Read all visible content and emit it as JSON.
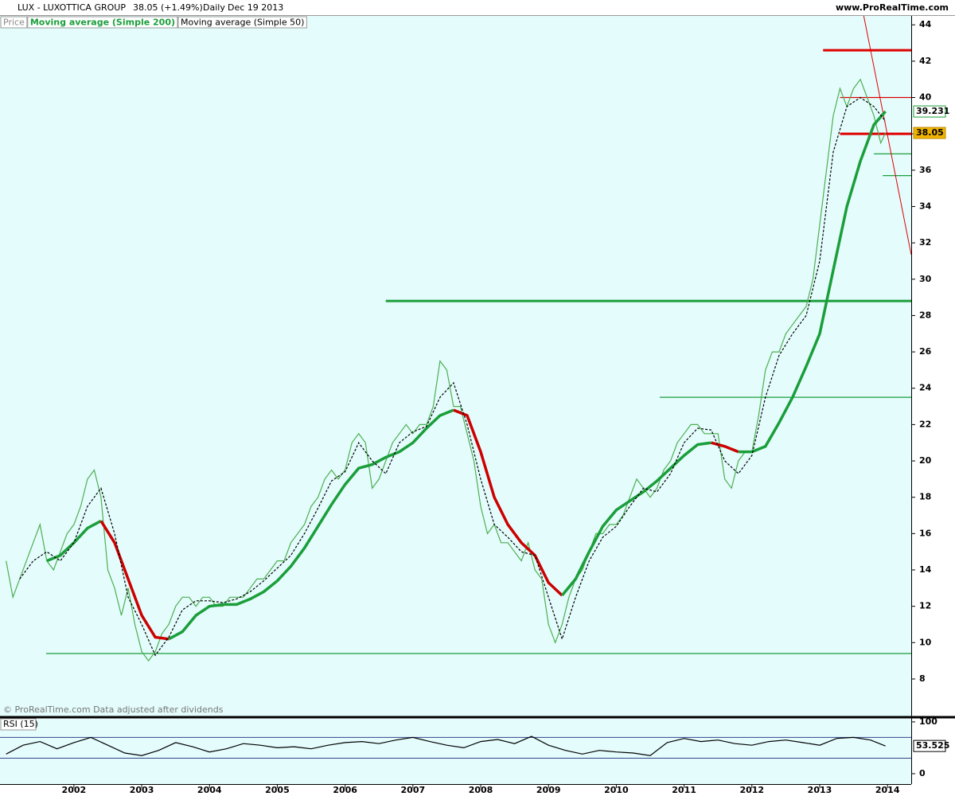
{
  "header": {
    "ticker": "LUX - LUXOTTICA GROUP",
    "quote": "38.05 (+1.49%)",
    "interval": "Daily",
    "date": "Dec 19 2013",
    "source": "www.ProRealTime.com",
    "footnote": "© ProRealTime.com Data adjusted after dividends"
  },
  "chart_data": [
    {
      "type": "line",
      "xlim": [
        2000.91,
        2014.35
      ],
      "ylim": [
        5.94,
        44.49
      ],
      "xticks": [
        2002,
        2003,
        2004,
        2005,
        2006,
        2007,
        2008,
        2009,
        2010,
        2011,
        2012,
        2013,
        2014
      ],
      "yticks": [
        8,
        10,
        12,
        14,
        16,
        18,
        20,
        22,
        24,
        26,
        28,
        30,
        32,
        34,
        36,
        38,
        40,
        42,
        44
      ],
      "series": [
        {
          "name": "Price",
          "color": "#4caf50",
          "style": "solid",
          "label_color": "#888888",
          "x": [
            2001.0,
            2001.1,
            2001.2,
            2001.3,
            2001.4,
            2001.5,
            2001.6,
            2001.7,
            2001.8,
            2001.9,
            2002.0,
            2002.1,
            2002.2,
            2002.3,
            2002.4,
            2002.5,
            2002.6,
            2002.7,
            2002.8,
            2002.9,
            2003.0,
            2003.1,
            2003.2,
            2003.3,
            2003.4,
            2003.5,
            2003.6,
            2003.7,
            2003.8,
            2003.9,
            2004.0,
            2004.1,
            2004.2,
            2004.3,
            2004.4,
            2004.5,
            2004.6,
            2004.7,
            2004.8,
            2004.9,
            2005.0,
            2005.1,
            2005.2,
            2005.3,
            2005.4,
            2005.5,
            2005.6,
            2005.7,
            2005.8,
            2005.9,
            2006.0,
            2006.1,
            2006.2,
            2006.3,
            2006.4,
            2006.5,
            2006.6,
            2006.7,
            2006.8,
            2006.9,
            2007.0,
            2007.1,
            2007.2,
            2007.3,
            2007.4,
            2007.5,
            2007.6,
            2007.7,
            2007.8,
            2007.9,
            2008.0,
            2008.1,
            2008.2,
            2008.3,
            2008.4,
            2008.5,
            2008.6,
            2008.7,
            2008.8,
            2008.9,
            2009.0,
            2009.1,
            2009.2,
            2009.3,
            2009.4,
            2009.5,
            2009.6,
            2009.7,
            2009.8,
            2009.9,
            2010.0,
            2010.1,
            2010.2,
            2010.3,
            2010.4,
            2010.5,
            2010.6,
            2010.7,
            2010.8,
            2010.9,
            2011.0,
            2011.1,
            2011.2,
            2011.3,
            2011.4,
            2011.5,
            2011.6,
            2011.7,
            2011.8,
            2011.9,
            2012.0,
            2012.1,
            2012.2,
            2012.3,
            2012.4,
            2012.5,
            2012.6,
            2012.7,
            2012.8,
            2012.9,
            2013.0,
            2013.1,
            2013.2,
            2013.3,
            2013.4,
            2013.5,
            2013.6,
            2013.7,
            2013.8,
            2013.9,
            2013.97
          ],
          "values": [
            14.5,
            12.5,
            13.5,
            14.5,
            15.5,
            16.5,
            14.5,
            14,
            15,
            16,
            16.5,
            17.5,
            19,
            19.5,
            18,
            14,
            13,
            11.5,
            13,
            11,
            9.5,
            9,
            9.5,
            10.5,
            11,
            12,
            12.5,
            12.5,
            12,
            12.5,
            12.5,
            12,
            12,
            12.5,
            12.5,
            12.5,
            13,
            13.5,
            13.5,
            14,
            14.5,
            14.5,
            15.5,
            16,
            16.5,
            17.5,
            18,
            19,
            19.5,
            19,
            19.5,
            21,
            21.5,
            21,
            18.5,
            19,
            20,
            21,
            21.5,
            22,
            21.5,
            22,
            22,
            23,
            25.5,
            25,
            23,
            23,
            21.5,
            20,
            17.5,
            16,
            16.5,
            15.5,
            15.5,
            15,
            14.5,
            15.5,
            14,
            13.5,
            11,
            10,
            11,
            12.5,
            13.5,
            14,
            15,
            16,
            16,
            16.5,
            16.5,
            17,
            18,
            19,
            18.5,
            18,
            18.5,
            19.5,
            20,
            21,
            21.5,
            22,
            22,
            21.5,
            21.5,
            21.5,
            19,
            18.5,
            20,
            20.5,
            20.5,
            22.5,
            25,
            26,
            26,
            27,
            27.5,
            28,
            28.5,
            30,
            33,
            36,
            39,
            40.5,
            39.5,
            40.5,
            41,
            40,
            39,
            37.5,
            38.05
          ],
          "last_box": "#f0b400"
        },
        {
          "name": "Moving average (Simple 200)",
          "color": "#1a9e3a",
          "down_color": "#cc0000",
          "style": "solid",
          "label_color": "#1a9e3a",
          "x": [
            2001.6,
            2001.8,
            2002.0,
            2002.2,
            2002.4,
            2002.6,
            2002.8,
            2003.0,
            2003.2,
            2003.4,
            2003.6,
            2003.8,
            2004.0,
            2004.2,
            2004.4,
            2004.6,
            2004.8,
            2005.0,
            2005.2,
            2005.4,
            2005.6,
            2005.8,
            2006.0,
            2006.2,
            2006.4,
            2006.6,
            2006.8,
            2007.0,
            2007.2,
            2007.4,
            2007.6,
            2007.8,
            2008.0,
            2008.2,
            2008.4,
            2008.6,
            2008.8,
            2009.0,
            2009.2,
            2009.4,
            2009.6,
            2009.8,
            2010.0,
            2010.2,
            2010.4,
            2010.6,
            2010.8,
            2011.0,
            2011.2,
            2011.4,
            2011.6,
            2011.8,
            2012.0,
            2012.2,
            2012.4,
            2012.6,
            2012.8,
            2013.0,
            2013.2,
            2013.4,
            2013.6,
            2013.8,
            2013.97
          ],
          "values": [
            14.5,
            14.8,
            15.5,
            16.3,
            16.7,
            15.5,
            13.5,
            11.5,
            10.3,
            10.2,
            10.6,
            11.5,
            12,
            12.1,
            12.1,
            12.4,
            12.8,
            13.4,
            14.2,
            15.2,
            16.4,
            17.6,
            18.7,
            19.6,
            19.8,
            20.2,
            20.5,
            21,
            21.8,
            22.5,
            22.8,
            22.5,
            20.5,
            18,
            16.5,
            15.5,
            14.8,
            13.3,
            12.6,
            13.5,
            15,
            16.4,
            17.3,
            17.8,
            18.3,
            18.9,
            19.6,
            20.3,
            20.9,
            21,
            20.8,
            20.5,
            20.5,
            20.8,
            22.1,
            23.5,
            25.2,
            27,
            30.5,
            34,
            36.5,
            38.5,
            39.231
          ],
          "last_box": "#ffffff"
        },
        {
          "name": "Moving average (Simple 50)",
          "color": "#000000",
          "style": "dashed",
          "label_color": "#000000",
          "x": [
            2001.2,
            2001.4,
            2001.6,
            2001.8,
            2002.0,
            2002.2,
            2002.4,
            2002.6,
            2002.8,
            2003.0,
            2003.2,
            2003.4,
            2003.6,
            2003.8,
            2004.0,
            2004.2,
            2004.4,
            2004.6,
            2004.8,
            2005.0,
            2005.2,
            2005.4,
            2005.6,
            2005.8,
            2006.0,
            2006.2,
            2006.4,
            2006.6,
            2006.8,
            2007.0,
            2007.2,
            2007.4,
            2007.6,
            2007.8,
            2008.0,
            2008.2,
            2008.4,
            2008.6,
            2008.8,
            2009.0,
            2009.2,
            2009.4,
            2009.6,
            2009.8,
            2010.0,
            2010.2,
            2010.4,
            2010.6,
            2010.8,
            2011.0,
            2011.2,
            2011.4,
            2011.6,
            2011.8,
            2012.0,
            2012.2,
            2012.4,
            2012.6,
            2012.8,
            2013.0,
            2013.2,
            2013.4,
            2013.6,
            2013.8,
            2013.97
          ],
          "values": [
            13.5,
            14.5,
            15,
            14.5,
            15.5,
            17.5,
            18.5,
            16,
            12.5,
            11,
            9.3,
            10.3,
            11.8,
            12.3,
            12.3,
            12.2,
            12.4,
            12.8,
            13.4,
            14.1,
            14.8,
            16,
            17.4,
            18.9,
            19.4,
            21,
            20,
            19.3,
            21,
            21.6,
            21.9,
            23.5,
            24.3,
            22,
            19,
            16.5,
            15.8,
            15,
            14.8,
            12.5,
            10.2,
            12.5,
            14.5,
            15.8,
            16.4,
            17.5,
            18.5,
            18.3,
            19.3,
            21,
            21.8,
            21.7,
            20,
            19.3,
            20.3,
            23.5,
            25.8,
            27,
            28,
            31,
            37,
            39.5,
            40,
            39.5,
            38.7
          ]
        }
      ],
      "levels": [
        {
          "value": 42.6,
          "from": 2013.05,
          "color": "#e00000",
          "weight": "bold"
        },
        {
          "value": 38,
          "from": 2013.3,
          "color": "#e00000",
          "weight": "bold"
        },
        {
          "value": 40,
          "from": 2013.3,
          "color": "#e00000",
          "weight": "normal"
        },
        {
          "value": 36.9,
          "from": 2013.8,
          "color": "#1a9e3a",
          "weight": "normal"
        },
        {
          "value": 35.7,
          "from": 2013.93,
          "color": "#1a9e3a",
          "weight": "normal"
        },
        {
          "value": 28.8,
          "from": 2006.6,
          "color": "#1a9e3a",
          "weight": "bold"
        },
        {
          "value": 23.5,
          "from": 2010.64,
          "color": "#1a9e3a",
          "weight": "normal"
        },
        {
          "value": 9.4,
          "from": 2001.59,
          "color": "#1a9e3a",
          "weight": "normal"
        }
      ],
      "trendlines": [
        {
          "x": [
            2013.65,
            2014.35
          ],
          "y": [
            44.49,
            31.35
          ],
          "color": "#e00000"
        }
      ]
    },
    {
      "type": "line",
      "title": "RSI (15)",
      "xlim": [
        2000.91,
        2014.35
      ],
      "ylim": [
        -20,
        106
      ],
      "yticks": [
        0,
        100
      ],
      "hlines": [
        30,
        70
      ],
      "series": [
        {
          "color": "#000000",
          "x": [
            2001.0,
            2001.25,
            2001.5,
            2001.75,
            2002.0,
            2002.25,
            2002.5,
            2002.75,
            2003.0,
            2003.25,
            2003.5,
            2003.75,
            2004.0,
            2004.25,
            2004.5,
            2004.75,
            2005.0,
            2005.25,
            2005.5,
            2005.75,
            2006.0,
            2006.25,
            2006.5,
            2006.75,
            2007.0,
            2007.25,
            2007.5,
            2007.75,
            2008.0,
            2008.25,
            2008.5,
            2008.75,
            2009.0,
            2009.25,
            2009.5,
            2009.75,
            2010.0,
            2010.25,
            2010.5,
            2010.75,
            2011.0,
            2011.25,
            2011.5,
            2011.75,
            2012.0,
            2012.25,
            2012.5,
            2012.75,
            2013.0,
            2013.25,
            2013.5,
            2013.75,
            2013.97
          ],
          "values": [
            38,
            55,
            62,
            48,
            60,
            70,
            55,
            40,
            35,
            45,
            60,
            52,
            42,
            48,
            58,
            55,
            50,
            52,
            48,
            55,
            60,
            62,
            58,
            65,
            70,
            62,
            55,
            50,
            62,
            66,
            58,
            72,
            55,
            45,
            38,
            45,
            42,
            40,
            35,
            60,
            68,
            62,
            65,
            58,
            55,
            62,
            65,
            60,
            55,
            68,
            70,
            65,
            53.525
          ]
        }
      ]
    }
  ]
}
